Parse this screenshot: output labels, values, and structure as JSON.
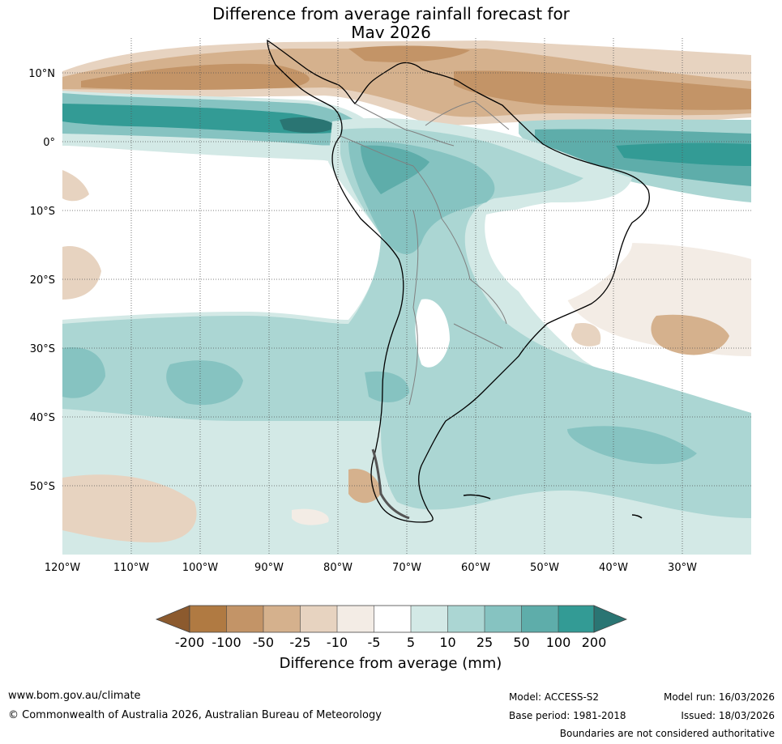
{
  "title": {
    "line1": "Difference from average rainfall forecast for",
    "line2": "May 2026"
  },
  "map": {
    "region": "South America",
    "lat_labels": [
      "10°N",
      "0°",
      "10°S",
      "20°S",
      "30°S",
      "40°S",
      "50°S"
    ],
    "lon_labels": [
      "120°W",
      "110°W",
      "100°W",
      "90°W",
      "80°W",
      "70°W",
      "60°W",
      "50°W",
      "40°W",
      "30°W"
    ]
  },
  "colorbar": {
    "ticks": [
      "-200",
      "-100",
      "-50",
      "-25",
      "-10",
      "-5",
      "5",
      "10",
      "25",
      "50",
      "100",
      "200"
    ],
    "colors": {
      "lt_-200": "#8c5a2e",
      "-200_-100": "#b07a42",
      "-100_-50": "#c39467",
      "-50_-25": "#d5b18d",
      "-25_-10": "#e7d3c0",
      "-10_-5": "#f3ece5",
      "-5_5": "#ffffff",
      "5_10": "#d3e9e6",
      "10_25": "#abd6d3",
      "25_50": "#86c3c1",
      "50_100": "#5eadaa",
      "100_200": "#339b95",
      "gt_200": "#2a7573"
    },
    "label": "Difference from average (mm)"
  },
  "footer": {
    "url": "www.bom.gov.au/climate",
    "copyright": "© Commonwealth of Australia 2026, Australian Bureau of Meteorology",
    "model": "Model: ACCESS-S2",
    "base_period": "Base period: 1981-2018",
    "model_run": "Model run: 16/03/2026",
    "issued": "Issued: 18/03/2026",
    "disclaimer": "Boundaries are not considered authoritative"
  }
}
